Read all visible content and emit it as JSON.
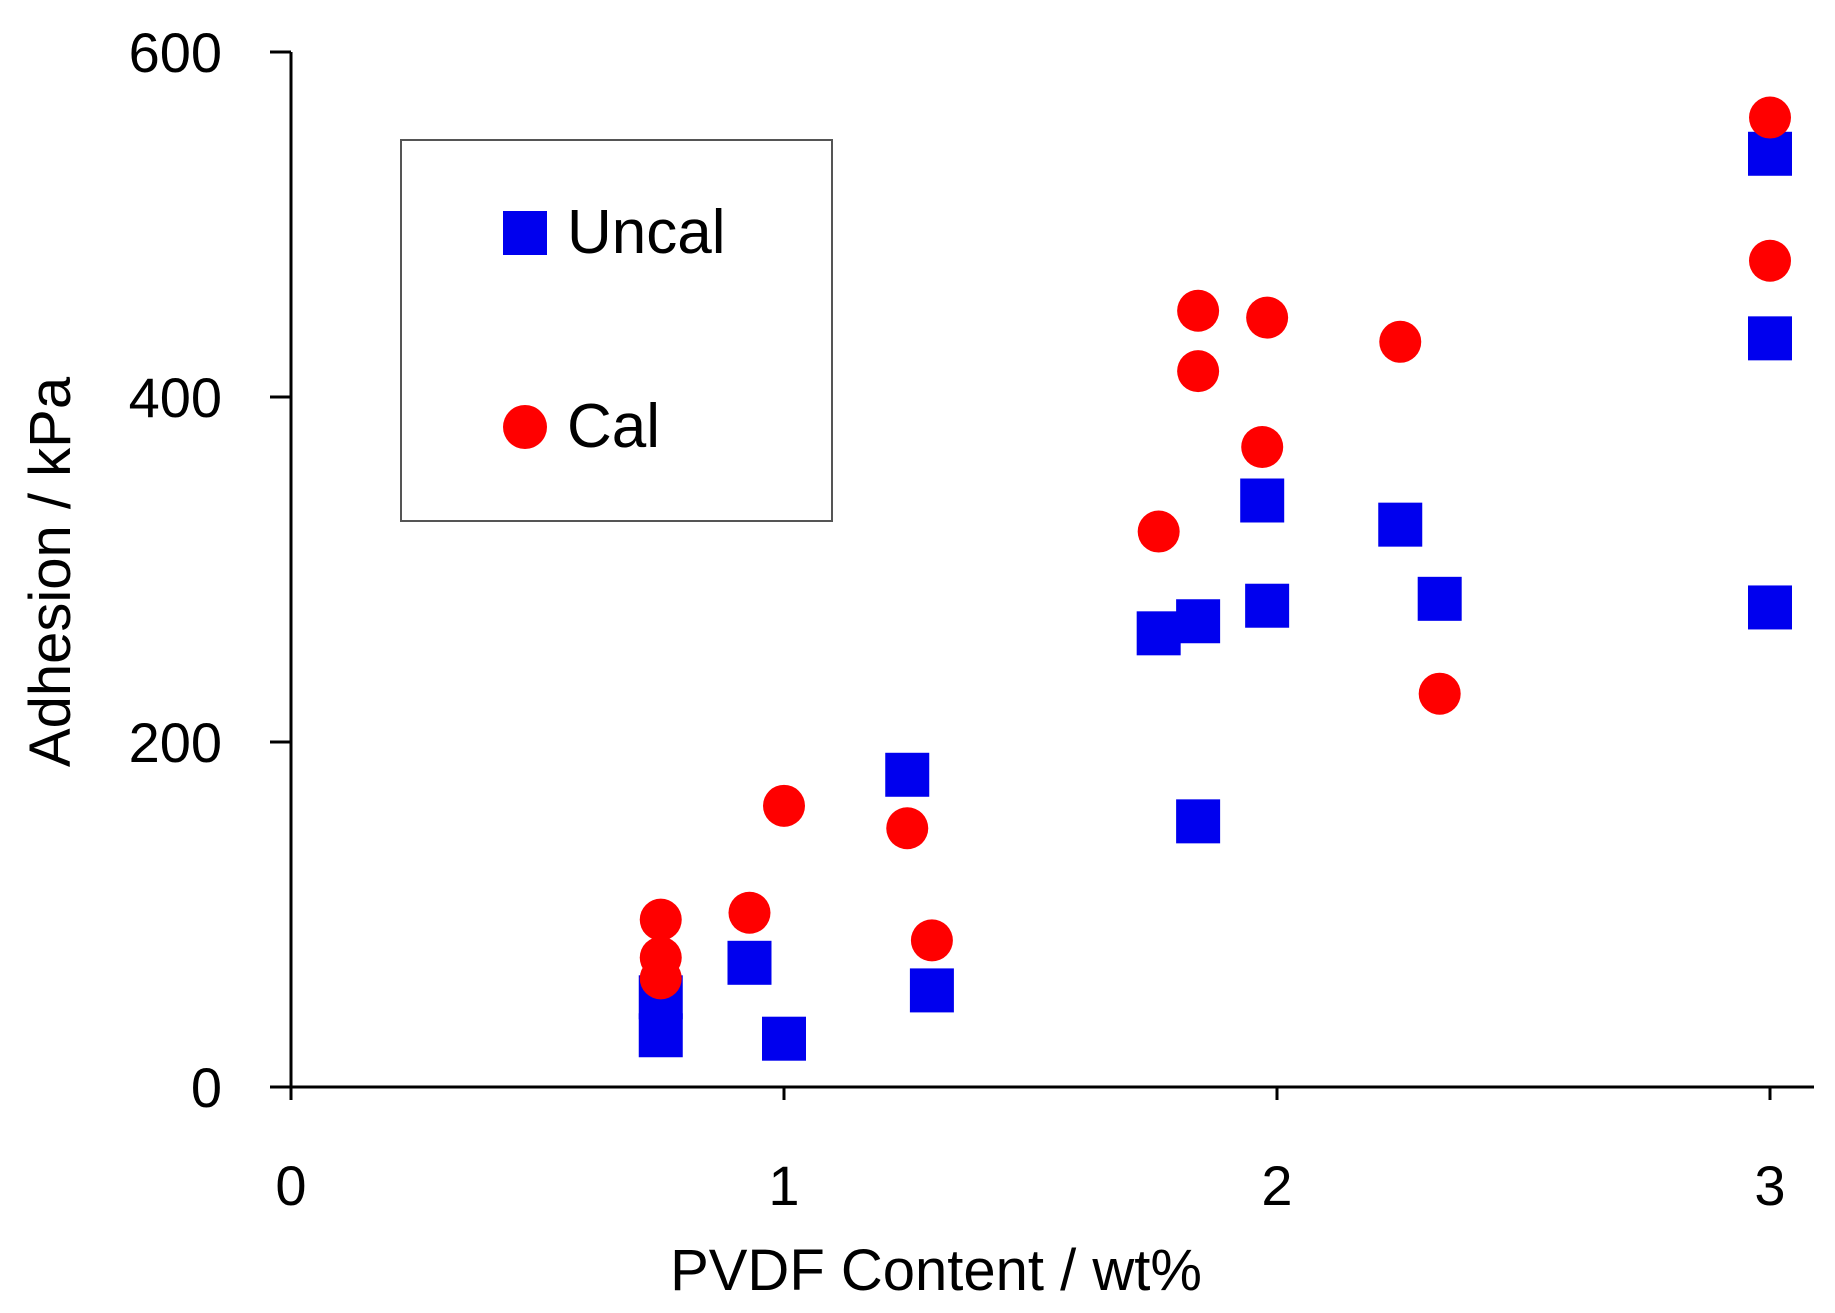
{
  "chart_data": {
    "type": "scatter",
    "title": "",
    "xlabel": "PVDF Content / wt%",
    "ylabel": "Adhesion / kPa",
    "xlim": [
      0,
      3.1
    ],
    "ylim": [
      0,
      600
    ],
    "x_ticks": [
      0,
      1,
      2,
      3
    ],
    "y_ticks": [
      0,
      200,
      400,
      600
    ],
    "x_tick_labels": [
      "0",
      "1",
      "2",
      "3"
    ],
    "y_tick_labels": [
      "0",
      "200",
      "400",
      "600"
    ],
    "grid": false,
    "legend_position": "top-left",
    "series": [
      {
        "name": "Uncal",
        "marker": "square",
        "color": "#0000ee",
        "points": [
          {
            "x": 0.75,
            "y": 30
          },
          {
            "x": 0.75,
            "y": 52
          },
          {
            "x": 0.93,
            "y": 72
          },
          {
            "x": 1.0,
            "y": 28
          },
          {
            "x": 1.25,
            "y": 181
          },
          {
            "x": 1.3,
            "y": 56
          },
          {
            "x": 1.76,
            "y": 263
          },
          {
            "x": 1.84,
            "y": 270
          },
          {
            "x": 1.84,
            "y": 154
          },
          {
            "x": 1.97,
            "y": 340
          },
          {
            "x": 1.98,
            "y": 279
          },
          {
            "x": 2.25,
            "y": 326
          },
          {
            "x": 2.33,
            "y": 283
          },
          {
            "x": 3.0,
            "y": 541
          },
          {
            "x": 3.0,
            "y": 434
          },
          {
            "x": 3.0,
            "y": 278
          }
        ]
      },
      {
        "name": "Cal",
        "marker": "circle",
        "color": "#ff0000",
        "points": [
          {
            "x": 0.75,
            "y": 97
          },
          {
            "x": 0.75,
            "y": 75
          },
          {
            "x": 0.75,
            "y": 63
          },
          {
            "x": 0.93,
            "y": 101
          },
          {
            "x": 1.0,
            "y": 163
          },
          {
            "x": 1.25,
            "y": 150
          },
          {
            "x": 1.3,
            "y": 85
          },
          {
            "x": 1.76,
            "y": 322
          },
          {
            "x": 1.84,
            "y": 450
          },
          {
            "x": 1.84,
            "y": 415
          },
          {
            "x": 1.97,
            "y": 371
          },
          {
            "x": 1.98,
            "y": 446
          },
          {
            "x": 2.25,
            "y": 432
          },
          {
            "x": 2.33,
            "y": 228
          },
          {
            "x": 3.0,
            "y": 562
          },
          {
            "x": 3.0,
            "y": 479
          }
        ]
      }
    ]
  }
}
